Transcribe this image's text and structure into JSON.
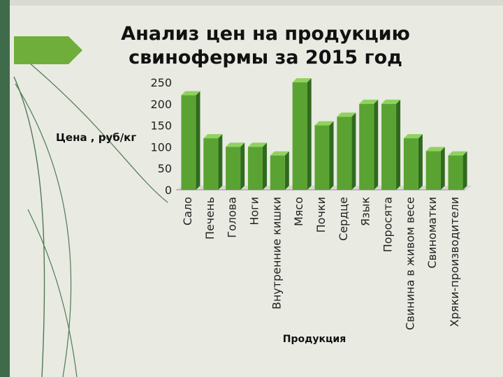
{
  "slide": {
    "title_line1": "Анализ цен на продукцию",
    "title_line2": "свинофермы за 2015 год",
    "accent_color": "#6fae3a",
    "sidebar_color": "#3f6b4a"
  },
  "chart_data": {
    "type": "bar",
    "title": "",
    "xlabel": "Продукция",
    "ylabel": "Цена , руб/кг",
    "ylim": [
      0,
      250
    ],
    "y_ticks": [
      0,
      50,
      100,
      150,
      200,
      250
    ],
    "categories": [
      "Сало",
      "Печень",
      "Голова",
      "Ноги",
      "Внутренние кишки",
      "Мясо",
      "Почки",
      "Сердце",
      "Язык",
      "Поросята",
      "Свинина в живом весе",
      "Свиноматки",
      "Хряки-производители"
    ],
    "values": [
      220,
      120,
      100,
      100,
      80,
      250,
      150,
      170,
      200,
      200,
      120,
      90,
      80
    ],
    "bar_color": "#5aa332",
    "grid": false,
    "legend": "none"
  }
}
